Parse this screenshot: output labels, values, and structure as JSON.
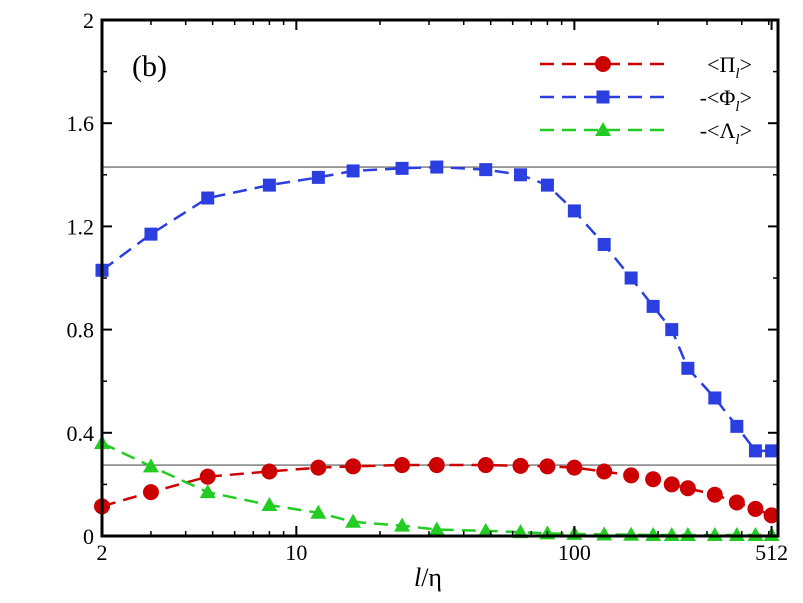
{
  "chart_data": {
    "type": "line",
    "panel_label": "(b)",
    "xlabel": {
      "italic": "l",
      "rest": "/η"
    },
    "ylabel": "",
    "xscale": "log",
    "xlim": [
      2,
      540
    ],
    "ylim": [
      0,
      2
    ],
    "x_ticks": [
      {
        "value": 2,
        "label": "2"
      },
      {
        "value": 10,
        "label": "10"
      },
      {
        "value": 100,
        "label": "100"
      },
      {
        "value": 512,
        "label": "512"
      }
    ],
    "y_ticks": [
      {
        "value": 0,
        "label": "0"
      },
      {
        "value": 0.4,
        "label": "0.4"
      },
      {
        "value": 0.8,
        "label": "0.8"
      },
      {
        "value": 1.2,
        "label": "1.2"
      },
      {
        "value": 1.6,
        "label": "1.6"
      },
      {
        "value": 2,
        "label": "2"
      }
    ],
    "reference_lines": [
      1.43,
      0.275
    ],
    "legend_position": "top-right",
    "series": [
      {
        "name": "<Π_l>",
        "legend": {
          "prefix": "<Π",
          "sub": "l",
          "suffix": ">"
        },
        "color": "#cc0000",
        "marker": "circle",
        "x": [
          2,
          3,
          4.8,
          8,
          12,
          16,
          24,
          32,
          48,
          64,
          80,
          100,
          128,
          160,
          192,
          224,
          256,
          320,
          384,
          448,
          512
        ],
        "y": [
          0.115,
          0.17,
          0.23,
          0.25,
          0.265,
          0.27,
          0.275,
          0.275,
          0.275,
          0.272,
          0.27,
          0.265,
          0.25,
          0.235,
          0.22,
          0.2,
          0.185,
          0.16,
          0.13,
          0.105,
          0.08
        ]
      },
      {
        "name": "-<Φ_l>",
        "legend": {
          "prefix": "-<Φ",
          "sub": "l",
          "suffix": ">"
        },
        "color": "#2b3fe0",
        "marker": "square",
        "x": [
          2,
          3,
          4.8,
          8,
          12,
          16,
          24,
          32,
          48,
          64,
          80,
          100,
          128,
          160,
          192,
          224,
          256,
          320,
          384,
          448,
          512
        ],
        "y": [
          1.03,
          1.17,
          1.31,
          1.36,
          1.39,
          1.415,
          1.425,
          1.43,
          1.42,
          1.4,
          1.36,
          1.26,
          1.13,
          1.0,
          0.89,
          0.8,
          0.65,
          0.535,
          0.425,
          0.33,
          0.33
        ]
      },
      {
        "name": "-<Λ_l>",
        "legend": {
          "prefix": "-<Λ",
          "sub": "l",
          "suffix": ">"
        },
        "color": "#22cc22",
        "marker": "triangle",
        "x": [
          2,
          3,
          4.8,
          8,
          12,
          16,
          24,
          32,
          48,
          64,
          80,
          100,
          128,
          160,
          192,
          224,
          256,
          320,
          384,
          448,
          512
        ],
        "y": [
          0.36,
          0.27,
          0.17,
          0.12,
          0.09,
          0.055,
          0.04,
          0.025,
          0.02,
          0.015,
          0.01,
          0.008,
          0.006,
          0.005,
          0.004,
          0.004,
          0.004,
          0.004,
          0.004,
          0.004,
          0.004
        ]
      }
    ]
  }
}
